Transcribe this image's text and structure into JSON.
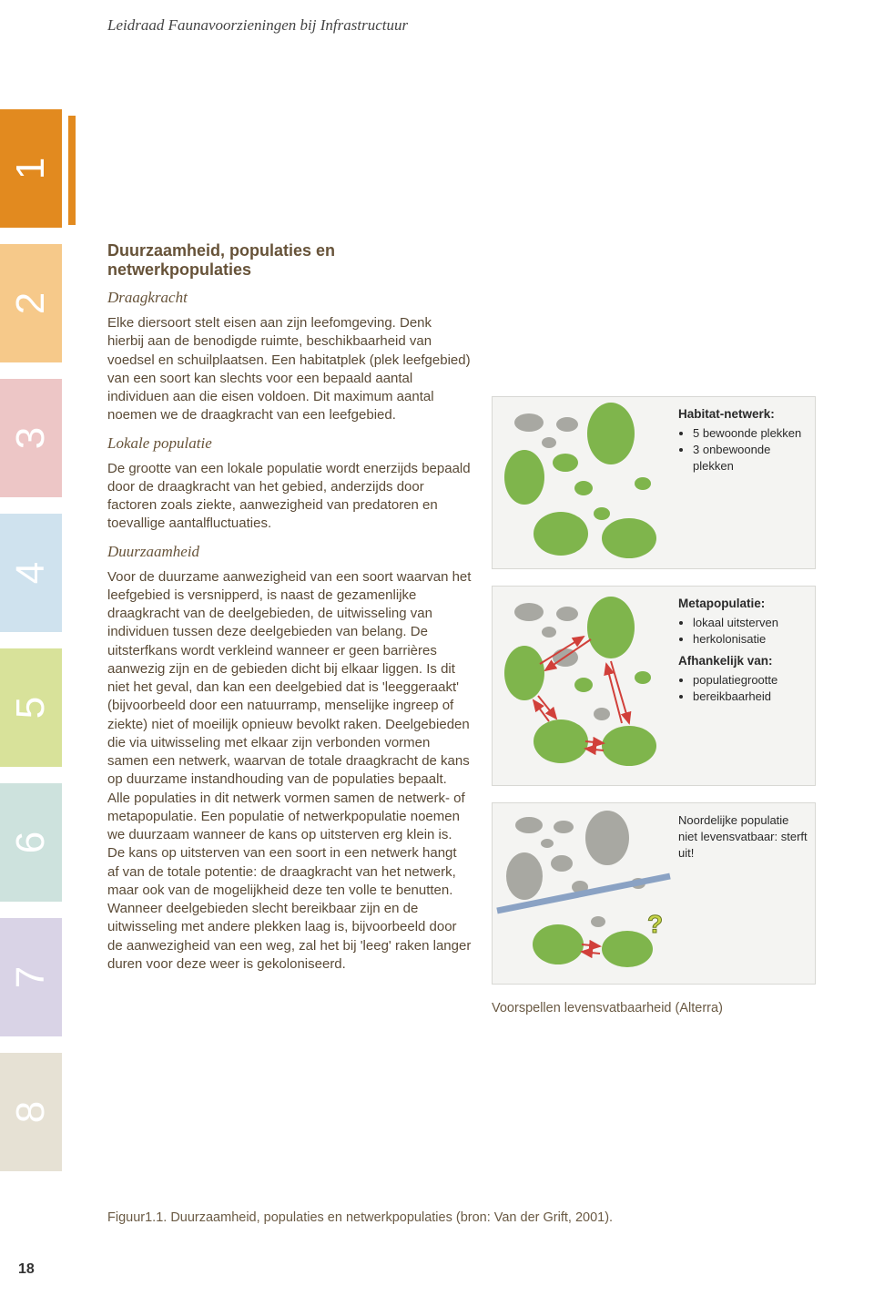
{
  "header": {
    "title": "Leidraad Faunavoorzieningen bij Infrastructuur"
  },
  "tabs": [
    {
      "n": "1",
      "bg": "#e28a1f",
      "fg": "#ffffff"
    },
    {
      "n": "2",
      "bg": "#f6c98a",
      "fg": "#ffffff"
    },
    {
      "n": "3",
      "bg": "#edc6c6",
      "fg": "#ffffff"
    },
    {
      "n": "4",
      "bg": "#cfe2ee",
      "fg": "#ffffff"
    },
    {
      "n": "5",
      "bg": "#d8e29a",
      "fg": "#ffffff"
    },
    {
      "n": "6",
      "bg": "#cde2dd",
      "fg": "#ffffff"
    },
    {
      "n": "7",
      "bg": "#d9d3e6",
      "fg": "#ffffff"
    },
    {
      "n": "8",
      "bg": "#e6e1d4",
      "fg": "#ffffff"
    }
  ],
  "bar_color": "#e28a1f",
  "box": {
    "title": "Duurzaamheid, populaties en netwerkpopulaties",
    "sec1_head": "Draagkracht",
    "sec1_text": "Elke diersoort stelt eisen aan zijn leefomgeving. Denk hierbij aan de benodigde ruimte, beschikbaarheid van voedsel en schuilplaatsen. Een habitatplek (plek leefgebied) van een soort kan slechts voor een bepaald aantal individuen aan die eisen voldoen. Dit maximum aantal noemen we de draagkracht van een leefgebied.",
    "sec2_head": "Lokale populatie",
    "sec2_text": "De grootte van een lokale populatie wordt enerzijds bepaald door de draagkracht van het gebied, anderzijds door factoren zoals ziekte, aanwezigheid van predatoren en toevallige aantalfluctuaties.",
    "sec3_head": "Duurzaamheid",
    "sec3_text": "Voor de duurzame aanwezigheid van een soort waarvan het leefgebied is versnipperd, is naast de gezamenlijke draagkracht van de deelgebieden, de uitwisseling van individuen tussen deze deelgebieden van belang. De uitsterfkans wordt verkleind wanneer er geen barrières aanwezig zijn en de gebieden dicht bij elkaar liggen. Is dit niet het geval, dan kan een deelgebied dat is 'leeggeraakt' (bijvoorbeeld door een natuurramp, menselijke ingreep of ziekte) niet of moeilijk opnieuw bevolkt raken. Deelgebieden die via uitwisseling met elkaar zijn verbonden vormen samen een netwerk, waarvan de totale draagkracht de kans op duurzame instandhouding van de populaties bepaalt. Alle populaties in dit netwerk vormen samen de netwerk- of metapopulatie. Een populatie of netwerkpopulatie noemen we duurzaam wanneer de kans op uitsterven erg klein is. De kans op uitsterven van een soort in een netwerk hangt af van de totale potentie: de draagkracht van het netwerk, maar ook van de mogelijkheid deze ten volle te benutten. Wanneer deelgebieden slecht bereikbaar zijn en de uitwisseling met andere plekken laag is, bijvoorbeeld door de aanwezigheid van een weg, zal het bij 'leeg' raken langer duren voor deze weer is gekoloniseerd."
  },
  "figures": {
    "green": "#7fb54c",
    "grey": "#a8a8a2",
    "arrow": "#d1403a",
    "road": "#8aa2c4",
    "qmark_fill": "#c9d64a",
    "qmark_text": "#6a7a1f",
    "panel1": {
      "h1": "Habitat-netwerk:",
      "b1": "5 bewoonde plekken",
      "b2": "3 onbewoonde plekken"
    },
    "panel2": {
      "h1": "Metapopulatie:",
      "b1": "lokaal uitsterven",
      "b2": "herkolonisatie",
      "h2": "Afhankelijk van:",
      "b3": "populatiegrootte",
      "b4": "bereikbaarheid"
    },
    "panel3": {
      "t1": "Noordelijke populatie niet levensvatbaar: sterft uit!"
    },
    "caption": "Voorspellen levensvatbaarheid (Alterra)"
  },
  "fig_number": "Figuur1.1. Duurzaamheid, populaties en netwerkpopulaties (bron: Van der Grift, 2001).",
  "page_number": "18"
}
